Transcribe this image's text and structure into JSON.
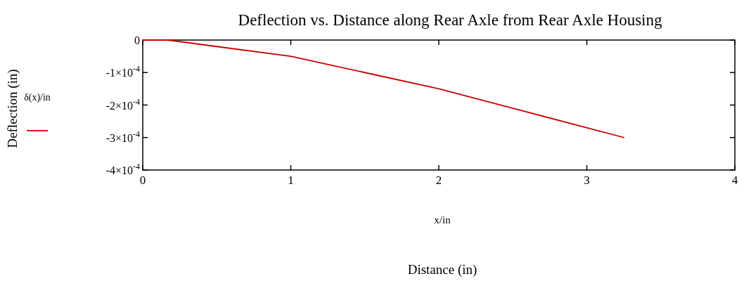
{
  "chart_data": {
    "type": "line",
    "title": "Deflection vs. Distance along Rear Axle from Rear Axle Housing",
    "xlabel": "x/in",
    "annotations": [
      "Distance (in)",
      "Deflection (in)"
    ],
    "xlim": [
      0,
      4
    ],
    "xticks": [
      0,
      1,
      2,
      3,
      4
    ],
    "ylim": [
      -0.0004,
      0
    ],
    "yticks": [
      {
        "value": 0,
        "label": "0"
      },
      {
        "value": -0.0001,
        "label": "-1×10$^{-4}$"
      },
      {
        "value": -0.0002,
        "label": "-2×10$^{-4}$"
      },
      {
        "value": -0.0003,
        "label": "-3×10$^{-4}$"
      },
      {
        "value": -0.0004,
        "label": "-4×10$^{-4}$"
      }
    ],
    "grid": false,
    "legend": "left",
    "marker": "none",
    "line_style": "solid",
    "series": [
      {
        "name": "δ(x)/in",
        "color": "#cc0000",
        "x": [
          0,
          0.17,
          0.5,
          1,
          1.5,
          2,
          2.5,
          3,
          3.25
        ],
        "values": [
          0,
          0,
          -2e-05,
          -5e-05,
          -0.0001,
          -0.00015,
          -0.00021,
          -0.00027,
          -0.0003
        ]
      }
    ]
  }
}
